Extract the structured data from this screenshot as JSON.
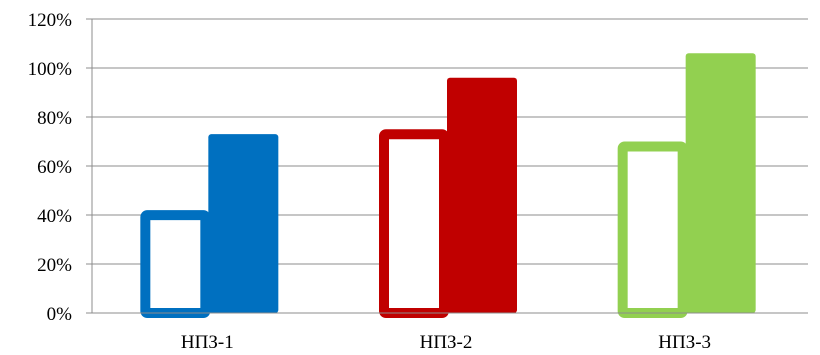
{
  "chart_data": {
    "type": "bar",
    "categories": [
      "НПЗ-1",
      "НПЗ-2",
      "НПЗ-3"
    ],
    "series": [
      {
        "style": "outline",
        "values": [
          0.42,
          0.75,
          0.7
        ]
      },
      {
        "style": "filled",
        "values": [
          0.73,
          0.96,
          1.06
        ]
      }
    ],
    "category_colors": [
      "#0070C0",
      "#C00000",
      "#92D050"
    ],
    "yticks": [
      "0%",
      "20%",
      "40%",
      "60%",
      "80%",
      "100%",
      "120%"
    ],
    "ylim": [
      0,
      1.2
    ],
    "grid": true,
    "legend": "none"
  }
}
